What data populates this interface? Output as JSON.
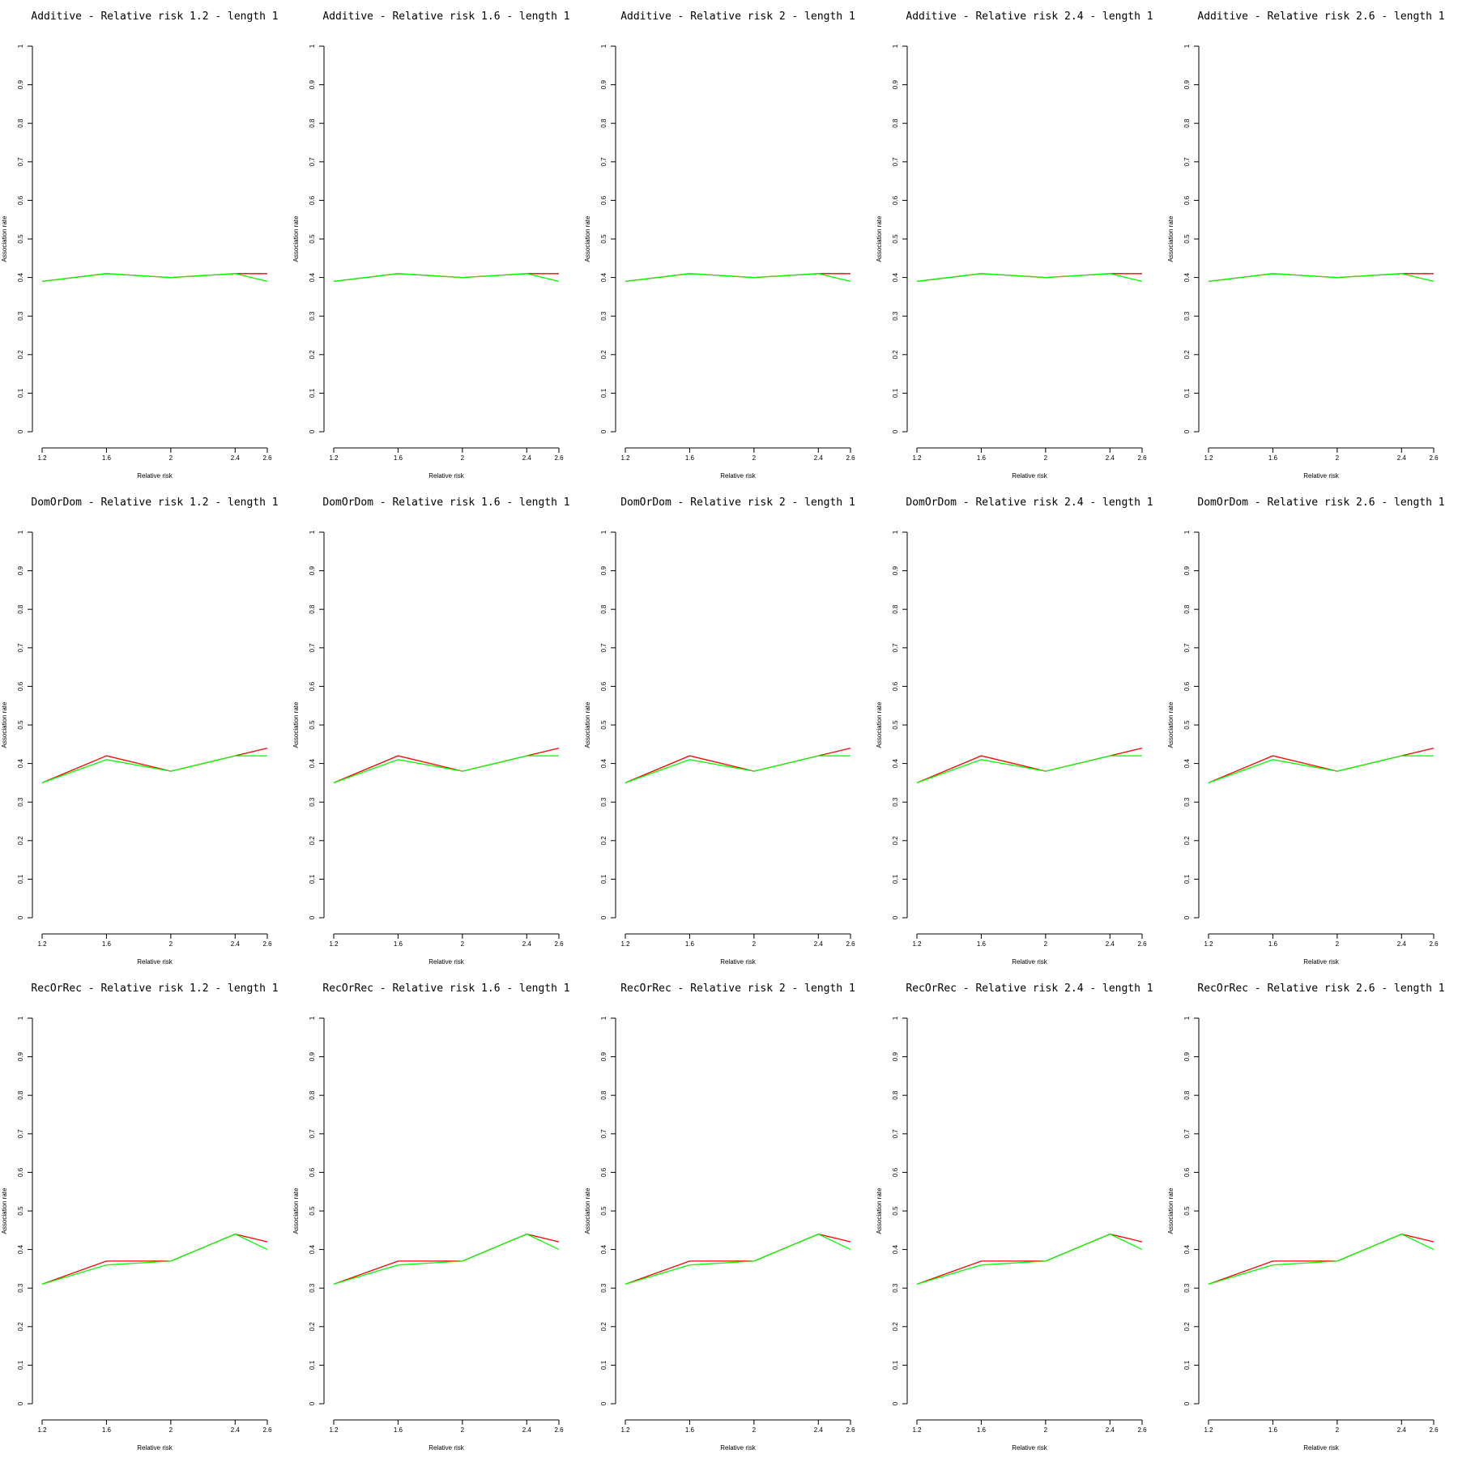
{
  "chart_data": [
    {
      "type": "line",
      "title": "Additive  - Relative risk 1.2 - length 1",
      "xlabel": "Relative risk",
      "ylabel": "Association rate",
      "x": [
        1.2,
        1.6,
        2,
        2.4,
        2.6
      ],
      "x_tick_labels": [
        "1.2",
        "1.6",
        "2",
        "2.4",
        "2.6"
      ],
      "y_tick_labels": [
        "0",
        "0.1",
        "0.2",
        "0.3",
        "0.4",
        "0.5",
        "0.6",
        "0.7",
        "0.8",
        "0.9",
        "1"
      ],
      "ylim": [
        0,
        1
      ],
      "series": [
        {
          "color": "#ff0000",
          "values": [
            0.39,
            0.41,
            0.4,
            0.41,
            0.41
          ]
        },
        {
          "color": "#00ff00",
          "values": [
            0.39,
            0.41,
            0.4,
            0.41,
            0.39
          ]
        }
      ]
    },
    {
      "type": "line",
      "title": "Additive  - Relative risk 1.6 - length 1",
      "xlabel": "Relative risk",
      "ylabel": "Association rate",
      "x": [
        1.2,
        1.6,
        2,
        2.4,
        2.6
      ],
      "x_tick_labels": [
        "1.2",
        "1.6",
        "2",
        "2.4",
        "2.6"
      ],
      "y_tick_labels": [
        "0",
        "0.1",
        "0.2",
        "0.3",
        "0.4",
        "0.5",
        "0.6",
        "0.7",
        "0.8",
        "0.9",
        "1"
      ],
      "ylim": [
        0,
        1
      ],
      "series": [
        {
          "color": "#ff0000",
          "values": [
            0.39,
            0.41,
            0.4,
            0.41,
            0.41
          ]
        },
        {
          "color": "#00ff00",
          "values": [
            0.39,
            0.41,
            0.4,
            0.41,
            0.39
          ]
        }
      ]
    },
    {
      "type": "line",
      "title": "Additive  - Relative risk 2 - length 1",
      "xlabel": "Relative risk",
      "ylabel": "Association rate",
      "x": [
        1.2,
        1.6,
        2,
        2.4,
        2.6
      ],
      "x_tick_labels": [
        "1.2",
        "1.6",
        "2",
        "2.4",
        "2.6"
      ],
      "y_tick_labels": [
        "0",
        "0.1",
        "0.2",
        "0.3",
        "0.4",
        "0.5",
        "0.6",
        "0.7",
        "0.8",
        "0.9",
        "1"
      ],
      "ylim": [
        0,
        1
      ],
      "series": [
        {
          "color": "#ff0000",
          "values": [
            0.39,
            0.41,
            0.4,
            0.41,
            0.41
          ]
        },
        {
          "color": "#00ff00",
          "values": [
            0.39,
            0.41,
            0.4,
            0.41,
            0.39
          ]
        }
      ]
    },
    {
      "type": "line",
      "title": "Additive  - Relative risk 2.4 - length 1",
      "xlabel": "Relative risk",
      "ylabel": "Association rate",
      "x": [
        1.2,
        1.6,
        2,
        2.4,
        2.6
      ],
      "x_tick_labels": [
        "1.2",
        "1.6",
        "2",
        "2.4",
        "2.6"
      ],
      "y_tick_labels": [
        "0",
        "0.1",
        "0.2",
        "0.3",
        "0.4",
        "0.5",
        "0.6",
        "0.7",
        "0.8",
        "0.9",
        "1"
      ],
      "ylim": [
        0,
        1
      ],
      "series": [
        {
          "color": "#ff0000",
          "values": [
            0.39,
            0.41,
            0.4,
            0.41,
            0.41
          ]
        },
        {
          "color": "#00ff00",
          "values": [
            0.39,
            0.41,
            0.4,
            0.41,
            0.39
          ]
        }
      ]
    },
    {
      "type": "line",
      "title": "Additive  - Relative risk 2.6 - length 1",
      "xlabel": "Relative risk",
      "ylabel": "Association rate",
      "x": [
        1.2,
        1.6,
        2,
        2.4,
        2.6
      ],
      "x_tick_labels": [
        "1.2",
        "1.6",
        "2",
        "2.4",
        "2.6"
      ],
      "y_tick_labels": [
        "0",
        "0.1",
        "0.2",
        "0.3",
        "0.4",
        "0.5",
        "0.6",
        "0.7",
        "0.8",
        "0.9",
        "1"
      ],
      "ylim": [
        0,
        1
      ],
      "series": [
        {
          "color": "#ff0000",
          "values": [
            0.39,
            0.41,
            0.4,
            0.41,
            0.41
          ]
        },
        {
          "color": "#00ff00",
          "values": [
            0.39,
            0.41,
            0.4,
            0.41,
            0.39
          ]
        }
      ]
    },
    {
      "type": "line",
      "title": "DomOrDom  - Relative risk 1.2 - length 1",
      "xlabel": "Relative risk",
      "ylabel": "Association rate",
      "x": [
        1.2,
        1.6,
        2,
        2.4,
        2.6
      ],
      "x_tick_labels": [
        "1.2",
        "1.6",
        "2",
        "2.4",
        "2.6"
      ],
      "y_tick_labels": [
        "0",
        "0.1",
        "0.2",
        "0.3",
        "0.4",
        "0.5",
        "0.6",
        "0.7",
        "0.8",
        "0.9",
        "1"
      ],
      "ylim": [
        0,
        1
      ],
      "series": [
        {
          "color": "#ff0000",
          "values": [
            0.35,
            0.42,
            0.38,
            0.42,
            0.44
          ]
        },
        {
          "color": "#00ff00",
          "values": [
            0.35,
            0.41,
            0.38,
            0.42,
            0.42
          ]
        }
      ]
    },
    {
      "type": "line",
      "title": "DomOrDom  - Relative risk 1.6 - length 1",
      "xlabel": "Relative risk",
      "ylabel": "Association rate",
      "x": [
        1.2,
        1.6,
        2,
        2.4,
        2.6
      ],
      "x_tick_labels": [
        "1.2",
        "1.6",
        "2",
        "2.4",
        "2.6"
      ],
      "y_tick_labels": [
        "0",
        "0.1",
        "0.2",
        "0.3",
        "0.4",
        "0.5",
        "0.6",
        "0.7",
        "0.8",
        "0.9",
        "1"
      ],
      "ylim": [
        0,
        1
      ],
      "series": [
        {
          "color": "#ff0000",
          "values": [
            0.35,
            0.42,
            0.38,
            0.42,
            0.44
          ]
        },
        {
          "color": "#00ff00",
          "values": [
            0.35,
            0.41,
            0.38,
            0.42,
            0.42
          ]
        }
      ]
    },
    {
      "type": "line",
      "title": "DomOrDom  - Relative risk 2 - length 1",
      "xlabel": "Relative risk",
      "ylabel": "Association rate",
      "x": [
        1.2,
        1.6,
        2,
        2.4,
        2.6
      ],
      "x_tick_labels": [
        "1.2",
        "1.6",
        "2",
        "2.4",
        "2.6"
      ],
      "y_tick_labels": [
        "0",
        "0.1",
        "0.2",
        "0.3",
        "0.4",
        "0.5",
        "0.6",
        "0.7",
        "0.8",
        "0.9",
        "1"
      ],
      "ylim": [
        0,
        1
      ],
      "series": [
        {
          "color": "#ff0000",
          "values": [
            0.35,
            0.42,
            0.38,
            0.42,
            0.44
          ]
        },
        {
          "color": "#00ff00",
          "values": [
            0.35,
            0.41,
            0.38,
            0.42,
            0.42
          ]
        }
      ]
    },
    {
      "type": "line",
      "title": "DomOrDom  - Relative risk 2.4 - length 1",
      "xlabel": "Relative risk",
      "ylabel": "Association rate",
      "x": [
        1.2,
        1.6,
        2,
        2.4,
        2.6
      ],
      "x_tick_labels": [
        "1.2",
        "1.6",
        "2",
        "2.4",
        "2.6"
      ],
      "y_tick_labels": [
        "0",
        "0.1",
        "0.2",
        "0.3",
        "0.4",
        "0.5",
        "0.6",
        "0.7",
        "0.8",
        "0.9",
        "1"
      ],
      "ylim": [
        0,
        1
      ],
      "series": [
        {
          "color": "#ff0000",
          "values": [
            0.35,
            0.42,
            0.38,
            0.42,
            0.44
          ]
        },
        {
          "color": "#00ff00",
          "values": [
            0.35,
            0.41,
            0.38,
            0.42,
            0.42
          ]
        }
      ]
    },
    {
      "type": "line",
      "title": "DomOrDom  - Relative risk 2.6 - length 1",
      "xlabel": "Relative risk",
      "ylabel": "Association rate",
      "x": [
        1.2,
        1.6,
        2,
        2.4,
        2.6
      ],
      "x_tick_labels": [
        "1.2",
        "1.6",
        "2",
        "2.4",
        "2.6"
      ],
      "y_tick_labels": [
        "0",
        "0.1",
        "0.2",
        "0.3",
        "0.4",
        "0.5",
        "0.6",
        "0.7",
        "0.8",
        "0.9",
        "1"
      ],
      "ylim": [
        0,
        1
      ],
      "series": [
        {
          "color": "#ff0000",
          "values": [
            0.35,
            0.42,
            0.38,
            0.42,
            0.44
          ]
        },
        {
          "color": "#00ff00",
          "values": [
            0.35,
            0.41,
            0.38,
            0.42,
            0.42
          ]
        }
      ]
    },
    {
      "type": "line",
      "title": "RecOrRec  - Relative risk 1.2 - length 1",
      "xlabel": "Relative risk",
      "ylabel": "Association rate",
      "x": [
        1.2,
        1.6,
        2,
        2.4,
        2.6
      ],
      "x_tick_labels": [
        "1.2",
        "1.6",
        "2",
        "2.4",
        "2.6"
      ],
      "y_tick_labels": [
        "0",
        "0.1",
        "0.2",
        "0.3",
        "0.4",
        "0.5",
        "0.6",
        "0.7",
        "0.8",
        "0.9",
        "1"
      ],
      "ylim": [
        0,
        1
      ],
      "series": [
        {
          "color": "#ff0000",
          "values": [
            0.31,
            0.37,
            0.37,
            0.44,
            0.42
          ]
        },
        {
          "color": "#00ff00",
          "values": [
            0.31,
            0.36,
            0.37,
            0.44,
            0.4
          ]
        }
      ]
    },
    {
      "type": "line",
      "title": "RecOrRec  - Relative risk 1.6 - length 1",
      "xlabel": "Relative risk",
      "ylabel": "Association rate",
      "x": [
        1.2,
        1.6,
        2,
        2.4,
        2.6
      ],
      "x_tick_labels": [
        "1.2",
        "1.6",
        "2",
        "2.4",
        "2.6"
      ],
      "y_tick_labels": [
        "0",
        "0.1",
        "0.2",
        "0.3",
        "0.4",
        "0.5",
        "0.6",
        "0.7",
        "0.8",
        "0.9",
        "1"
      ],
      "ylim": [
        0,
        1
      ],
      "series": [
        {
          "color": "#ff0000",
          "values": [
            0.31,
            0.37,
            0.37,
            0.44,
            0.42
          ]
        },
        {
          "color": "#00ff00",
          "values": [
            0.31,
            0.36,
            0.37,
            0.44,
            0.4
          ]
        }
      ]
    },
    {
      "type": "line",
      "title": "RecOrRec  - Relative risk 2 - length 1",
      "xlabel": "Relative risk",
      "ylabel": "Association rate",
      "x": [
        1.2,
        1.6,
        2,
        2.4,
        2.6
      ],
      "x_tick_labels": [
        "1.2",
        "1.6",
        "2",
        "2.4",
        "2.6"
      ],
      "y_tick_labels": [
        "0",
        "0.1",
        "0.2",
        "0.3",
        "0.4",
        "0.5",
        "0.6",
        "0.7",
        "0.8",
        "0.9",
        "1"
      ],
      "ylim": [
        0,
        1
      ],
      "series": [
        {
          "color": "#ff0000",
          "values": [
            0.31,
            0.37,
            0.37,
            0.44,
            0.42
          ]
        },
        {
          "color": "#00ff00",
          "values": [
            0.31,
            0.36,
            0.37,
            0.44,
            0.4
          ]
        }
      ]
    },
    {
      "type": "line",
      "title": "RecOrRec  - Relative risk 2.4 - length 1",
      "xlabel": "Relative risk",
      "ylabel": "Association rate",
      "x": [
        1.2,
        1.6,
        2,
        2.4,
        2.6
      ],
      "x_tick_labels": [
        "1.2",
        "1.6",
        "2",
        "2.4",
        "2.6"
      ],
      "y_tick_labels": [
        "0",
        "0.1",
        "0.2",
        "0.3",
        "0.4",
        "0.5",
        "0.6",
        "0.7",
        "0.8",
        "0.9",
        "1"
      ],
      "ylim": [
        0,
        1
      ],
      "series": [
        {
          "color": "#ff0000",
          "values": [
            0.31,
            0.37,
            0.37,
            0.44,
            0.42
          ]
        },
        {
          "color": "#00ff00",
          "values": [
            0.31,
            0.36,
            0.37,
            0.44,
            0.4
          ]
        }
      ]
    },
    {
      "type": "line",
      "title": "RecOrRec  - Relative risk 2.6 - length 1",
      "xlabel": "Relative risk",
      "ylabel": "Association rate",
      "x": [
        1.2,
        1.6,
        2,
        2.4,
        2.6
      ],
      "x_tick_labels": [
        "1.2",
        "1.6",
        "2",
        "2.4",
        "2.6"
      ],
      "y_tick_labels": [
        "0",
        "0.1",
        "0.2",
        "0.3",
        "0.4",
        "0.5",
        "0.6",
        "0.7",
        "0.8",
        "0.9",
        "1"
      ],
      "ylim": [
        0,
        1
      ],
      "series": [
        {
          "color": "#ff0000",
          "values": [
            0.31,
            0.37,
            0.37,
            0.44,
            0.42
          ]
        },
        {
          "color": "#00ff00",
          "values": [
            0.31,
            0.36,
            0.37,
            0.44,
            0.4
          ]
        }
      ]
    }
  ]
}
